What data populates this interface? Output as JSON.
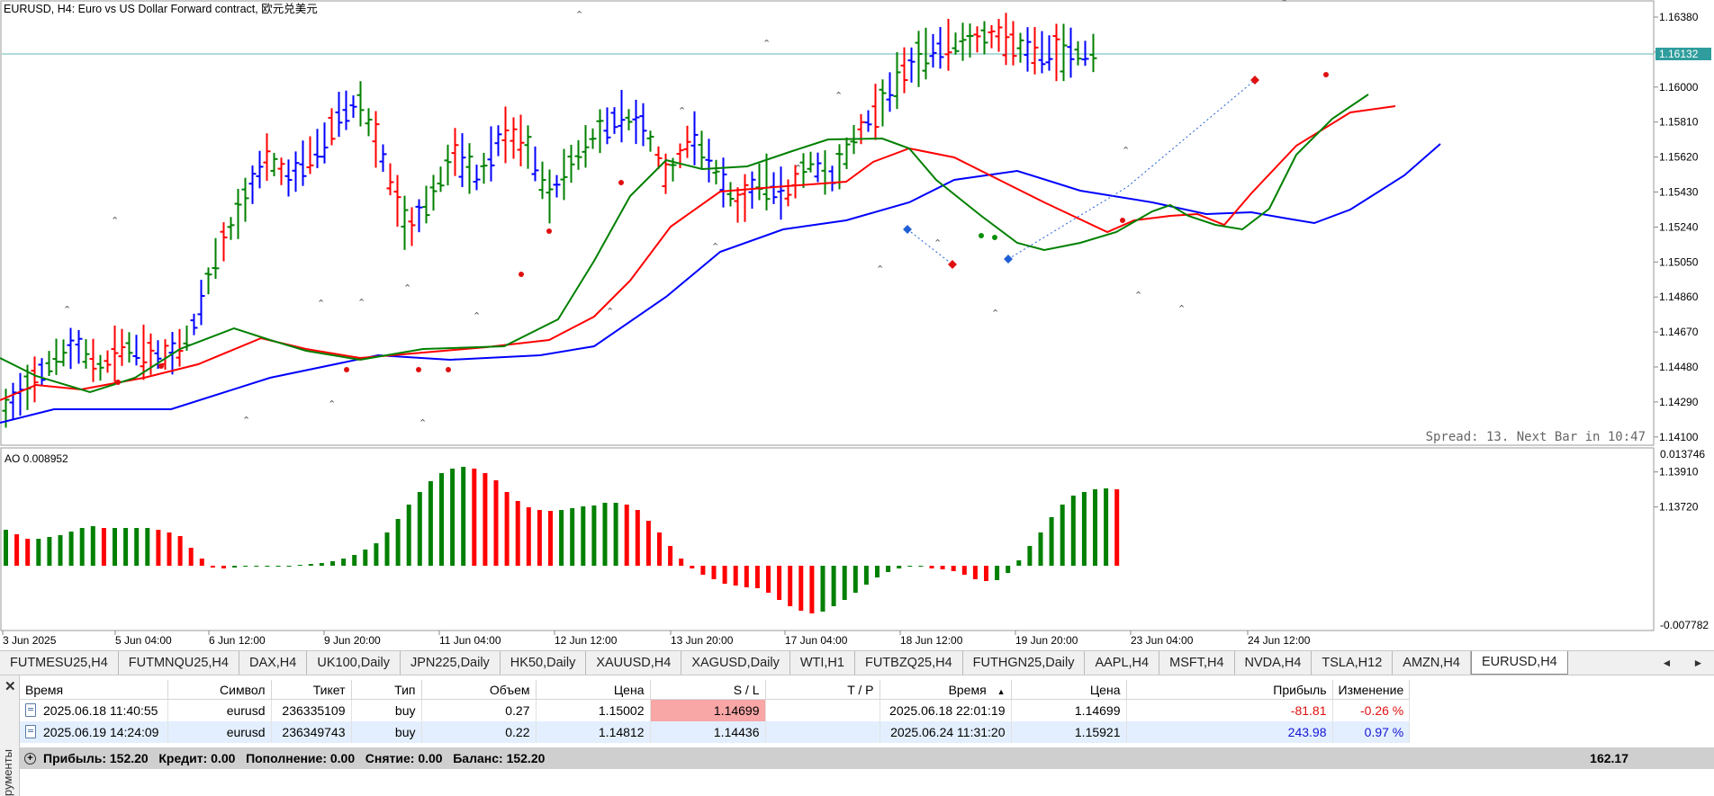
{
  "chart": {
    "title": "EURUSD, H4:  Euro vs US Dollar Forward contract, 欧元兑美元",
    "price_levels": [
      "1.16380",
      "1.16190",
      "1.16000",
      "1.15810",
      "1.15620",
      "1.15430",
      "1.15240",
      "1.15050",
      "1.14860",
      "1.14670",
      "1.14480",
      "1.14290",
      "1.14100",
      "1.13910",
      "1.13720"
    ],
    "current_price": "1.16132",
    "spread_text": "Spread: 13. Next Bar in 10:47",
    "time_labels": [
      "3 Jun 2025",
      "5 Jun 04:00",
      "6 Jun 12:00",
      "9 Jun 20:00",
      "11 Jun 04:00",
      "12 Jun 12:00",
      "13 Jun 20:00",
      "17 Jun 04:00",
      "18 Jun 12:00",
      "19 Jun 20:00",
      "23 Jun 04:00",
      "24 Jun 12:00"
    ],
    "colors": {
      "bull": "#008000",
      "bear": "#ff0000",
      "neutral": "#0000ff",
      "price_line": "#5fb7b7"
    }
  },
  "oscillator": {
    "label": "AO 0.008952",
    "max_label": "0.013746",
    "min_label": "-0.007782"
  },
  "tabs": [
    {
      "label": "FUTMESU25,H4"
    },
    {
      "label": "FUTMNQU25,H4"
    },
    {
      "label": "DAX,H4"
    },
    {
      "label": "UK100,Daily"
    },
    {
      "label": "JPN225,Daily"
    },
    {
      "label": "HK50,Daily"
    },
    {
      "label": "XAUUSD,H4"
    },
    {
      "label": "XAGUSD,Daily"
    },
    {
      "label": "WTI,H1"
    },
    {
      "label": "FUTBZQ25,H4"
    },
    {
      "label": "FUTHGN25,Daily"
    },
    {
      "label": "AAPL,H4"
    },
    {
      "label": "MSFT,H4"
    },
    {
      "label": "NVDA,H4"
    },
    {
      "label": "TSLA,H12"
    },
    {
      "label": "AMZN,H4"
    },
    {
      "label": "EURUSD,H4",
      "active": true
    }
  ],
  "tab_nav": {
    "prev": "◄",
    "next": "►"
  },
  "toolbox": {
    "close_glyph": "✕",
    "side_label": "рументы",
    "columns": [
      "Время",
      "Символ",
      "Тикет",
      "Тип",
      "Объем",
      "Цена",
      "S / L",
      "T / P",
      "Время",
      "Цена",
      "Прибыль",
      "Изменение"
    ],
    "sort_marker": "▲",
    "rows": [
      {
        "open_time": "2025.06.18 11:40:55",
        "symbol": "eurusd",
        "ticket": "236335109",
        "type": "buy",
        "volume": "0.27",
        "price": "1.15002",
        "sl": "1.14699",
        "tp": "",
        "close_time": "2025.06.18 22:01:19",
        "close_price": "1.14699",
        "profit": "-81.81",
        "change": "-0.26 %"
      },
      {
        "open_time": "2025.06.19 14:24:09",
        "symbol": "eurusd",
        "ticket": "236349743",
        "type": "buy",
        "volume": "0.22",
        "price": "1.14812",
        "sl": "1.14436",
        "tp": "",
        "close_time": "2025.06.24 11:31:20",
        "close_price": "1.15921",
        "profit": "243.98",
        "change": "0.97 %"
      }
    ],
    "summary": {
      "text": "Прибыль: 152.20   Кредит: 0.00   Пополнение: 0.00   Снятие: 0.00   Баланс: 152.20",
      "total": "162.17"
    }
  }
}
